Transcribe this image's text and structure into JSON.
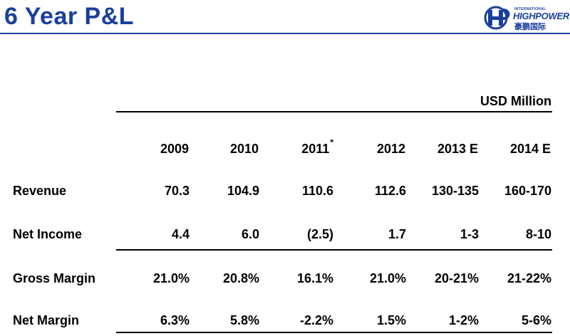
{
  "slide": {
    "title": "6 Year P&L",
    "unit": "USD Million"
  },
  "logo": {
    "small_text": "INTERNATIONAL",
    "brand": "HIGHPOWER",
    "chinese": "豪鹏国际"
  },
  "colors": {
    "title": "#1a3f9c",
    "text": "#000000",
    "rule": "#000000"
  },
  "table": {
    "columns": [
      {
        "year": "2009",
        "marker": ""
      },
      {
        "year": "2010",
        "marker": ""
      },
      {
        "year": "2011",
        "marker": "*"
      },
      {
        "year": "2012",
        "marker": ""
      },
      {
        "year": "2013 E",
        "marker": ""
      },
      {
        "year": "2014 E",
        "marker": ""
      }
    ],
    "rows": [
      {
        "label": "Revenue",
        "values": [
          "70.3",
          "104.9",
          "110.6",
          "112.6",
          "130-135",
          "160-170"
        ]
      },
      {
        "label": "Net Income",
        "values": [
          "4.4",
          "6.0",
          "(2.5)",
          "1.7",
          "1-3",
          "8-10"
        ]
      },
      {
        "label": "Gross Margin",
        "values": [
          "21.0%",
          "20.8%",
          "16.1%",
          "21.0%",
          "20-21%",
          "21-22%"
        ]
      },
      {
        "label": "Net Margin",
        "values": [
          "6.3%",
          "5.8%",
          "-2.2%",
          "1.5%",
          "1-2%",
          "5-6%"
        ]
      }
    ]
  }
}
